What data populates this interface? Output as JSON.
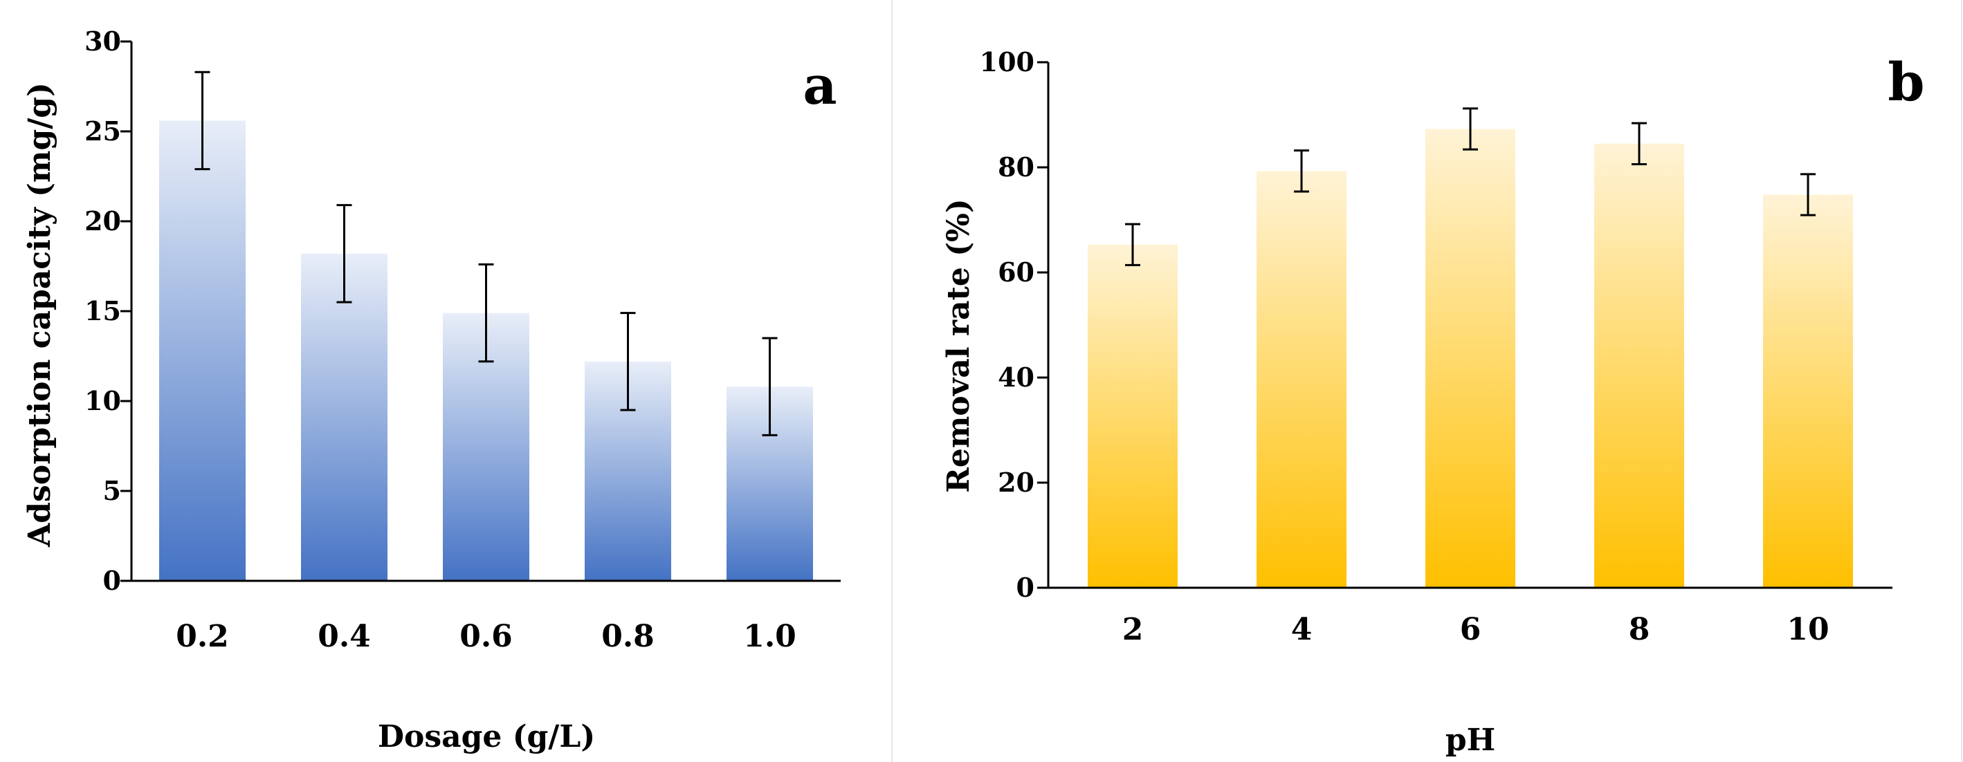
{
  "chart_data": [
    {
      "type": "bar",
      "panel": "a",
      "categories": [
        "0.2",
        "0.4",
        "0.6",
        "0.8",
        "1.0"
      ],
      "values": [
        25.6,
        18.2,
        14.9,
        12.2,
        10.8
      ],
      "errors": [
        2.7,
        2.7,
        2.7,
        2.7,
        2.7
      ],
      "xlabel": "Dosage (g/L)",
      "ylabel": "Adsorption capacity (mg/g)",
      "ylim": [
        0,
        30
      ],
      "yticks": [
        0,
        5,
        10,
        15,
        20,
        25,
        30
      ],
      "grid": false,
      "colors": {
        "top": "#e8eef8",
        "bottom": "#4472c4"
      }
    },
    {
      "type": "bar",
      "panel": "b",
      "categories": [
        "2",
        "4",
        "6",
        "8",
        "10"
      ],
      "values": [
        65.3,
        79.3,
        87.3,
        84.5,
        74.8
      ],
      "errors": [
        3.9,
        3.9,
        3.9,
        3.9,
        3.9
      ],
      "xlabel": "pH",
      "ylabel": "Removal rate (%)",
      "ylim": [
        0,
        100
      ],
      "yticks": [
        0,
        20,
        40,
        60,
        80,
        100
      ],
      "grid": false,
      "colors": {
        "top": "#fff3d6",
        "bottom": "#ffc000"
      }
    }
  ]
}
